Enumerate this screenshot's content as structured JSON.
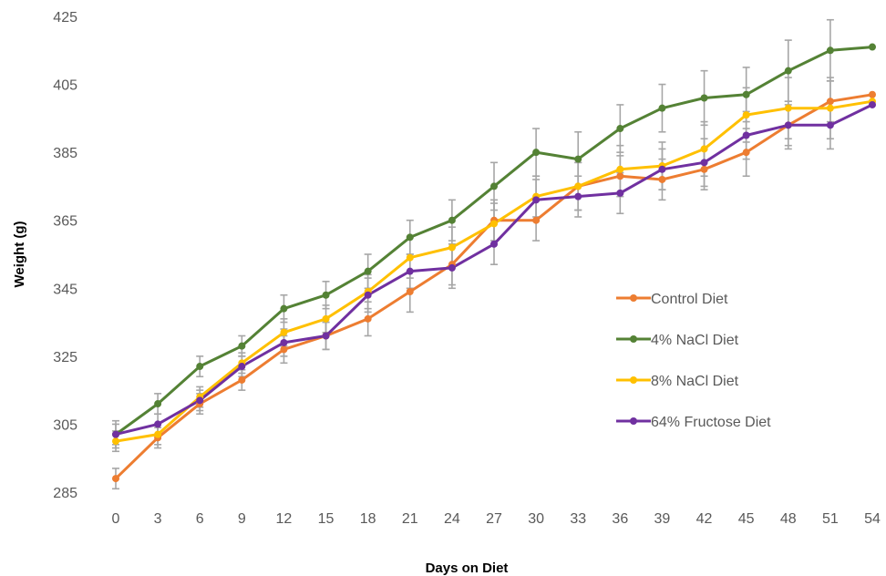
{
  "chart_data": {
    "type": "line",
    "xlabel": "Days on Diet",
    "ylabel": "Weight (g)",
    "x": [
      0,
      3,
      6,
      9,
      12,
      15,
      18,
      21,
      24,
      27,
      30,
      33,
      36,
      39,
      42,
      45,
      48,
      51,
      54
    ],
    "ylim": [
      285,
      425
    ],
    "yticks": [
      285,
      305,
      325,
      345,
      365,
      385,
      405,
      425
    ],
    "grid": false,
    "legend_position": "right-middle",
    "error_bar_color": "#a6a6a6",
    "series": [
      {
        "name": "Control Diet",
        "color": "#ed7d31",
        "values": [
          289,
          301,
          311,
          318,
          327,
          331,
          336,
          344,
          352,
          365,
          365,
          375,
          378,
          377,
          380,
          385,
          393,
          400,
          402
        ],
        "errors": [
          3,
          3,
          3,
          3,
          4,
          4,
          5,
          6,
          6,
          6,
          6,
          7,
          6,
          6,
          6,
          7,
          6,
          6,
          0
        ]
      },
      {
        "name": "4% NaCl Diet",
        "color": "#548235",
        "values": [
          302,
          311,
          322,
          328,
          339,
          343,
          350,
          360,
          365,
          375,
          385,
          383,
          392,
          398,
          401,
          402,
          409,
          415,
          416
        ],
        "errors": [
          4,
          3,
          3,
          3,
          4,
          4,
          5,
          5,
          6,
          7,
          7,
          8,
          7,
          7,
          8,
          8,
          9,
          9,
          0
        ]
      },
      {
        "name": "8% NaCl Diet",
        "color": "#ffc000",
        "values": [
          300,
          302,
          313,
          323,
          332,
          336,
          344,
          354,
          357,
          364,
          372,
          375,
          380,
          381,
          386,
          396,
          398,
          398,
          400
        ],
        "errors": [
          3,
          3,
          3,
          3,
          4,
          4,
          5,
          6,
          6,
          6,
          6,
          7,
          7,
          7,
          8,
          8,
          9,
          9,
          0
        ]
      },
      {
        "name": "64% Fructose Diet",
        "color": "#7030a0",
        "values": [
          302,
          305,
          312,
          322,
          329,
          331,
          343,
          350,
          351,
          358,
          371,
          372,
          373,
          380,
          382,
          390,
          393,
          393,
          399
        ],
        "errors": [
          3,
          3,
          3,
          3,
          4,
          4,
          5,
          5,
          6,
          6,
          6,
          6,
          6,
          6,
          7,
          7,
          7,
          7,
          0
        ]
      }
    ]
  }
}
